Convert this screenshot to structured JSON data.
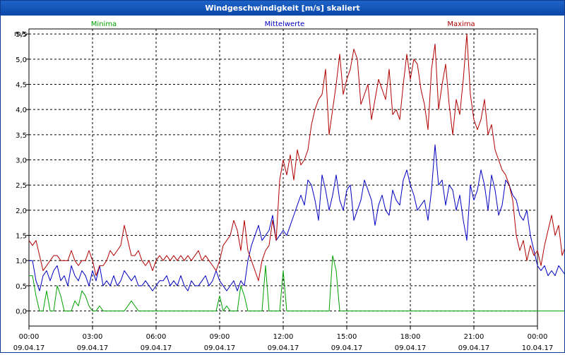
{
  "window": {
    "title": "Windgeschwindigkeit [m/s] skaliert"
  },
  "colors": {
    "min": "#00a000",
    "mean": "#0000c0",
    "max": "#b00000",
    "grid": "#000000",
    "title_bar": "#0a47a8"
  },
  "chart_data": {
    "type": "line",
    "title": "Windgeschwindigkeit [m/s] skaliert",
    "ylabel": "m/s",
    "xlabel": "",
    "ylim": [
      -0.3,
      5.6
    ],
    "xlim_hours": [
      0,
      24
    ],
    "yticks": [
      "0,0",
      "0,5",
      "1,0",
      "1,5",
      "2,0",
      "2,5",
      "3,0",
      "3,5",
      "4,0",
      "4,5",
      "5,0",
      "5,5"
    ],
    "xticks": [
      {
        "time": "00:00",
        "date": "09.04.17"
      },
      {
        "time": "03:00",
        "date": "09.04.17"
      },
      {
        "time": "06:00",
        "date": "09.04.17"
      },
      {
        "time": "09:00",
        "date": "09.04.17"
      },
      {
        "time": "12:00",
        "date": "09.04.17"
      },
      {
        "time": "15:00",
        "date": "09.04.17"
      },
      {
        "time": "18:00",
        "date": "09.04.17"
      },
      {
        "time": "21:00",
        "date": "09.04.17"
      },
      {
        "time": "00:00",
        "date": "10.04.17"
      }
    ],
    "grid": true,
    "legend_position": "top",
    "interval_minutes": 10,
    "series": [
      {
        "name": "Minima",
        "key": "min",
        "values": [
          0.7,
          0.7,
          0.3,
          0.0,
          0.0,
          0.4,
          0.0,
          0.0,
          0.5,
          0.3,
          0.0,
          0.0,
          0.0,
          0.2,
          0.1,
          0.4,
          0.3,
          0.1,
          0.0,
          0.0,
          0.1,
          0.0,
          0.0,
          0.0,
          0.0,
          0.0,
          0.0,
          0.0,
          0.1,
          0.2,
          0.1,
          0.0,
          0.0,
          0.0,
          0.0,
          0.0,
          0.0,
          0.0,
          0.0,
          0.0,
          0.0,
          0.0,
          0.0,
          0.0,
          0.0,
          0.0,
          0.0,
          0.0,
          0.0,
          0.0,
          0.0,
          0.0,
          0.0,
          0.0,
          0.3,
          0.0,
          0.1,
          0.0,
          0.0,
          0.0,
          0.5,
          0.3,
          0.0,
          0.0,
          0.0,
          0.0,
          0.0,
          0.9,
          0.0,
          0.0,
          0.0,
          0.0,
          0.8,
          0.0,
          0.0,
          0.0,
          0.0,
          0.0,
          0.0,
          0.0,
          0.0,
          0.0,
          0.0,
          0.0,
          0.0,
          0.0,
          1.1,
          0.8,
          0.0,
          0.0,
          0.0,
          0.0,
          0.0,
          0.0,
          0.0,
          0.0,
          0.0,
          0.0,
          0.0,
          0.0,
          0.0,
          0.0,
          0.0,
          0.0,
          0.0,
          0.0,
          0.0,
          0.0,
          0.0,
          0.0,
          0.0,
          0.0,
          0.0,
          0.0,
          0.0,
          0.0,
          0.0,
          0.0,
          0.0,
          0.0,
          0.0,
          0.0,
          0.0,
          0.0,
          0.0,
          0.0,
          0.0,
          0.0,
          0.0,
          0.0,
          0.0,
          0.0,
          0.0,
          0.0,
          0.0,
          0.0,
          0.0,
          0.0,
          0.0,
          0.0,
          0.0,
          0.0,
          0.0,
          0.0,
          0.0,
          0.0,
          0.0,
          0.0,
          0.0,
          0.0,
          0.0,
          0.0,
          0.0,
          0.0,
          0.0,
          0.0
        ]
      },
      {
        "name": "Mittelwerte",
        "key": "mean",
        "values": [
          1.0,
          1.0,
          0.6,
          0.4,
          0.7,
          0.8,
          0.6,
          0.8,
          0.9,
          0.6,
          0.7,
          0.5,
          0.9,
          0.7,
          0.6,
          0.8,
          0.7,
          0.5,
          0.8,
          0.6,
          0.9,
          0.5,
          0.6,
          0.5,
          0.7,
          0.5,
          0.6,
          0.8,
          0.7,
          0.6,
          0.7,
          0.5,
          0.5,
          0.6,
          0.5,
          0.4,
          0.5,
          0.6,
          0.6,
          0.7,
          0.5,
          0.6,
          0.5,
          0.7,
          0.5,
          0.4,
          0.6,
          0.5,
          0.5,
          0.6,
          0.7,
          0.5,
          0.6,
          0.8,
          0.6,
          0.5,
          0.4,
          0.5,
          0.6,
          0.4,
          0.6,
          0.5,
          1.0,
          1.3,
          1.5,
          1.7,
          1.4,
          1.5,
          1.6,
          1.9,
          1.4,
          1.5,
          1.6,
          1.5,
          1.7,
          1.9,
          2.1,
          2.3,
          2.1,
          2.6,
          2.5,
          2.2,
          1.8,
          2.7,
          2.4,
          2.0,
          2.3,
          2.7,
          2.2,
          2.0,
          2.4,
          2.5,
          1.8,
          2.0,
          2.2,
          2.6,
          2.4,
          2.2,
          1.7,
          2.1,
          2.3,
          2.0,
          1.9,
          2.4,
          2.2,
          2.1,
          2.6,
          2.8,
          2.5,
          2.3,
          2.0,
          2.1,
          2.2,
          1.8,
          2.4,
          3.3,
          2.5,
          2.6,
          2.1,
          2.5,
          2.4,
          2.0,
          2.3,
          1.8,
          1.4,
          2.5,
          2.2,
          2.4,
          2.8,
          2.5,
          2.0,
          2.7,
          2.4,
          1.9,
          2.1,
          2.6,
          2.5,
          2.3,
          2.2,
          1.9,
          1.8,
          2.0,
          1.5,
          1.2,
          0.9,
          0.8,
          0.9,
          0.7,
          0.8,
          0.7,
          0.9,
          0.8,
          0.7,
          0.9,
          0.8,
          0.7
        ]
      },
      {
        "name": "Maxima",
        "key": "max",
        "values": [
          1.4,
          1.3,
          1.4,
          1.1,
          0.8,
          0.9,
          1.0,
          1.1,
          1.1,
          1.0,
          1.0,
          1.0,
          1.2,
          1.0,
          0.9,
          1.0,
          1.0,
          1.2,
          1.0,
          0.7,
          0.9,
          0.9,
          1.0,
          1.2,
          1.1,
          1.2,
          1.3,
          1.7,
          1.4,
          1.1,
          1.1,
          1.2,
          1.0,
          0.9,
          1.0,
          0.8,
          1.0,
          1.1,
          1.0,
          1.1,
          1.0,
          1.1,
          1.0,
          1.1,
          1.0,
          1.1,
          1.0,
          1.1,
          1.2,
          1.0,
          1.1,
          1.0,
          0.9,
          0.8,
          1.0,
          1.3,
          1.4,
          1.5,
          1.8,
          1.6,
          1.2,
          1.8,
          1.2,
          1.0,
          0.8,
          0.6,
          1.0,
          1.2,
          1.3,
          1.8,
          1.4,
          2.6,
          3.0,
          2.7,
          3.1,
          2.6,
          3.2,
          2.9,
          3.0,
          3.2,
          3.7,
          4.0,
          4.2,
          4.3,
          4.8,
          3.5,
          4.0,
          4.5,
          5.1,
          4.3,
          4.6,
          4.8,
          5.2,
          5.0,
          4.1,
          4.3,
          4.5,
          3.8,
          4.2,
          4.6,
          4.4,
          4.2,
          4.8,
          3.9,
          4.0,
          3.8,
          4.5,
          5.1,
          4.6,
          5.0,
          4.9,
          4.4,
          4.1,
          3.6,
          4.8,
          5.3,
          4.0,
          4.5,
          4.9,
          4.1,
          3.5,
          4.2,
          3.9,
          4.6,
          5.5,
          4.3,
          3.8,
          3.6,
          3.8,
          4.2,
          3.5,
          3.7,
          3.2,
          3.0,
          2.8,
          2.7,
          2.5,
          2.2,
          1.5,
          1.2,
          1.4,
          1.0,
          1.3,
          1.1,
          1.2,
          0.9,
          1.3,
          1.6,
          1.9,
          1.5,
          1.7,
          1.1,
          1.3,
          1.2,
          1.1,
          1.1
        ]
      }
    ]
  }
}
